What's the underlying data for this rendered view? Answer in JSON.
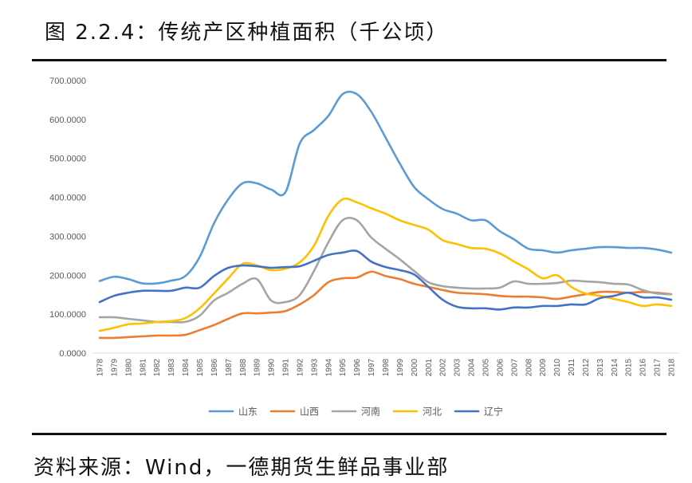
{
  "source": "资料来源：Wind，一德期货生鲜品事业部",
  "chart_data": {
    "type": "line",
    "title": "图 2.2.4：传统产区种植面积（千公顷）",
    "xlabel": "",
    "ylabel": "",
    "x": [
      1978,
      1979,
      1980,
      1981,
      1982,
      1983,
      1984,
      1985,
      1986,
      1987,
      1988,
      1989,
      1990,
      1991,
      1992,
      1993,
      1994,
      1995,
      1996,
      1997,
      1998,
      1999,
      2000,
      2001,
      2002,
      2003,
      2004,
      2005,
      2006,
      2007,
      2008,
      2009,
      2010,
      2011,
      2012,
      2013,
      2014,
      2015,
      2016,
      2017,
      2018
    ],
    "ylim": [
      0,
      700
    ],
    "yticks": [
      "0.0000",
      "100.0000",
      "200.0000",
      "300.0000",
      "400.0000",
      "500.0000",
      "600.0000",
      "700.0000"
    ],
    "grid": false,
    "legend_position": "bottom",
    "series": [
      {
        "name": "山东",
        "color": "#5B9BD5",
        "values": [
          185,
          196,
          190,
          179,
          179,
          186,
          198,
          247,
          333,
          395,
          436,
          436,
          420,
          413,
          538,
          573,
          609,
          665,
          665,
          620,
          554,
          487,
          427,
          395,
          370,
          358,
          341,
          341,
          313,
          292,
          268,
          264,
          258,
          264,
          268,
          272,
          272,
          270,
          270,
          266,
          258
        ]
      },
      {
        "name": "山西",
        "color": "#ED7D31",
        "values": [
          39,
          39,
          41,
          43,
          45,
          45,
          47,
          59,
          72,
          88,
          102,
          102,
          104,
          108,
          125,
          149,
          182,
          192,
          194,
          209,
          198,
          190,
          178,
          170,
          162,
          155,
          153,
          151,
          147,
          145,
          145,
          143,
          139,
          145,
          151,
          157,
          157,
          155,
          157,
          155,
          151
        ]
      },
      {
        "name": "河南",
        "color": "#A5A5A5",
        "values": [
          92,
          92,
          88,
          84,
          80,
          80,
          80,
          96,
          135,
          155,
          178,
          190,
          135,
          131,
          149,
          211,
          284,
          341,
          341,
          297,
          268,
          241,
          211,
          182,
          172,
          168,
          166,
          166,
          168,
          184,
          178,
          178,
          180,
          186,
          184,
          182,
          178,
          176,
          162,
          153,
          151
        ]
      },
      {
        "name": "河北",
        "color": "#FFC000",
        "values": [
          57,
          65,
          74,
          76,
          80,
          82,
          90,
          115,
          153,
          192,
          229,
          225,
          213,
          217,
          233,
          276,
          352,
          395,
          387,
          372,
          358,
          341,
          329,
          317,
          290,
          280,
          270,
          268,
          256,
          235,
          215,
          192,
          200,
          170,
          153,
          147,
          139,
          131,
          121,
          125,
          121
        ]
      },
      {
        "name": "辽宁",
        "color": "#4472C4",
        "values": [
          131,
          147,
          155,
          160,
          160,
          160,
          168,
          168,
          198,
          219,
          225,
          223,
          219,
          221,
          223,
          237,
          252,
          258,
          262,
          235,
          221,
          213,
          202,
          170,
          137,
          119,
          115,
          115,
          112,
          117,
          117,
          121,
          121,
          125,
          125,
          141,
          147,
          155,
          143,
          143,
          137
        ]
      }
    ]
  }
}
